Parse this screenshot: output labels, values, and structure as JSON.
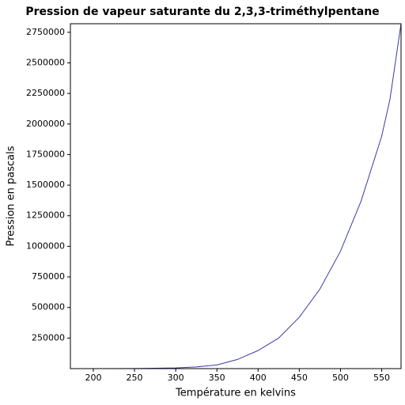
{
  "chart_data": {
    "type": "line",
    "title": "Pression de vapeur saturante du 2,3,3-triméthylpentane",
    "x_label": "Température en kelvins",
    "y_label": "Pression en pascals",
    "x": [
      172,
      200,
      250,
      300,
      325,
      350,
      375,
      400,
      425,
      450,
      475,
      500,
      525,
      550,
      560,
      573.5
    ],
    "series": [
      {
        "color": "#3b3ba8",
        "values": [
          1,
          20,
          500,
          6000,
          14000,
          30000,
          75000,
          148000,
          250000,
          420000,
          650000,
          960000,
          1370000,
          1900000,
          2200000,
          2820000
        ]
      }
    ],
    "xlim": [
      172.2,
      573.5
    ],
    "ylim": [
      0,
      2820000
    ],
    "xticks": [
      200,
      250,
      300,
      350,
      400,
      450,
      500,
      550
    ],
    "yticks": [
      250000,
      500000,
      750000,
      1000000,
      1250000,
      1500000,
      1750000,
      2000000,
      2250000,
      2500000,
      2750000
    ]
  }
}
